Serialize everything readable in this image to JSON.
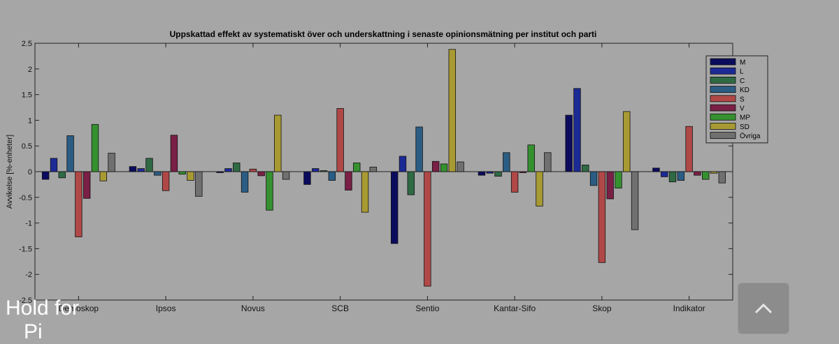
{
  "chart_data": {
    "type": "bar",
    "title": "Uppskattad effekt av systematiskt över och underskattning i senaste opinionsmätning per institut och parti",
    "xlabel": "",
    "ylabel": "Avvikelse [%-enheter]",
    "ylim": [
      -2.5,
      2.5
    ],
    "yticks": [
      "-2.5",
      "-2",
      "-1.5",
      "-1",
      "-0.5",
      "0",
      "0.5",
      "1",
      "1.5",
      "2",
      "2.5"
    ],
    "ytick_values": [
      -2.5,
      -2,
      -1.5,
      -1,
      -0.5,
      0,
      0.5,
      1,
      1.5,
      2,
      2.5
    ],
    "categories": [
      "Demoskop",
      "Ipsos",
      "Novus",
      "SCB",
      "Sentio",
      "Kantar-Sifo",
      "Skop",
      "Indikator"
    ],
    "legend_position": "top-right",
    "series": [
      {
        "name": "M",
        "color": "#0b0b5e",
        "values": [
          -0.15,
          0.1,
          -0.02,
          -0.25,
          -1.4,
          -0.07,
          1.1,
          0.07
        ]
      },
      {
        "name": "L",
        "color": "#1c2a95",
        "values": [
          0.26,
          0.06,
          0.06,
          0.06,
          0.3,
          -0.03,
          1.62,
          -0.1
        ]
      },
      {
        "name": "C",
        "color": "#2f6a44",
        "values": [
          -0.12,
          0.26,
          0.17,
          0.02,
          -0.45,
          -0.09,
          0.13,
          -0.2
        ]
      },
      {
        "name": "KD",
        "color": "#2b5d84",
        "values": [
          0.7,
          -0.07,
          -0.4,
          -0.17,
          0.87,
          0.37,
          -0.27,
          -0.17
        ]
      },
      {
        "name": "S",
        "color": "#b04848",
        "values": [
          -1.27,
          -0.37,
          0.05,
          1.23,
          -2.23,
          -0.4,
          -1.77,
          0.88
        ]
      },
      {
        "name": "V",
        "color": "#7a1f45",
        "values": [
          -0.52,
          0.71,
          -0.08,
          -0.36,
          0.2,
          -0.02,
          -0.53,
          -0.07
        ]
      },
      {
        "name": "MP",
        "color": "#35912f",
        "values": [
          0.92,
          -0.05,
          -0.75,
          0.17,
          0.15,
          0.52,
          -0.32,
          -0.15
        ]
      },
      {
        "name": "SD",
        "color": "#a89a32",
        "values": [
          -0.18,
          -0.17,
          1.1,
          -0.79,
          2.38,
          -0.67,
          1.17,
          -0.03
        ]
      },
      {
        "name": "Övriga",
        "color": "#707070",
        "values": [
          0.36,
          -0.48,
          -0.15,
          0.09,
          0.19,
          0.37,
          -1.13,
          -0.22
        ]
      }
    ]
  },
  "overlay": {
    "hint_text": "Hold for",
    "hint_sub": "Pi"
  },
  "scroll_top_button": {
    "icon": "chevron-up-icon"
  }
}
